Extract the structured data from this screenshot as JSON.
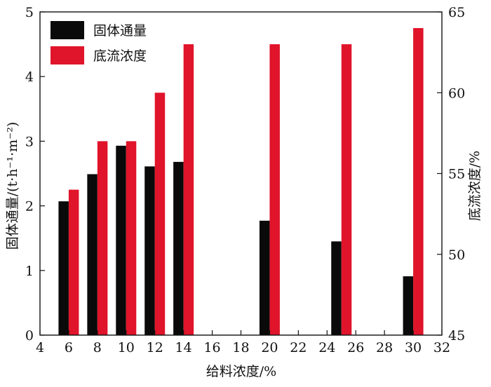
{
  "chart_data": {
    "type": "bar",
    "xlabel": "给料浓度/%",
    "ylabel_left": "固体通量/(t·h⁻¹·m⁻²)",
    "ylabel_right": "底流浓度/%",
    "xlim": [
      4,
      32
    ],
    "ylim_left": [
      0,
      5
    ],
    "ylim_right": [
      45,
      65
    ],
    "xticks": [
      4,
      6,
      8,
      10,
      12,
      14,
      16,
      18,
      20,
      22,
      24,
      26,
      28,
      30,
      32
    ],
    "yticks_left": [
      0,
      1,
      2,
      3,
      4,
      5
    ],
    "yticks_right": [
      45,
      50,
      55,
      60,
      65
    ],
    "categories": [
      6,
      8,
      10,
      12,
      14,
      20,
      25,
      30
    ],
    "series": [
      {
        "name": "固体通量",
        "axis": "left",
        "color": "#0a0a0a",
        "values": [
          2.07,
          2.49,
          2.93,
          2.61,
          2.68,
          1.77,
          1.45,
          0.91
        ]
      },
      {
        "name": "底流浓度",
        "axis": "right",
        "color": "#e0142a",
        "values": [
          54,
          57,
          57,
          60,
          63,
          63,
          63,
          64
        ]
      }
    ],
    "legend": "top-left",
    "grid": false
  }
}
